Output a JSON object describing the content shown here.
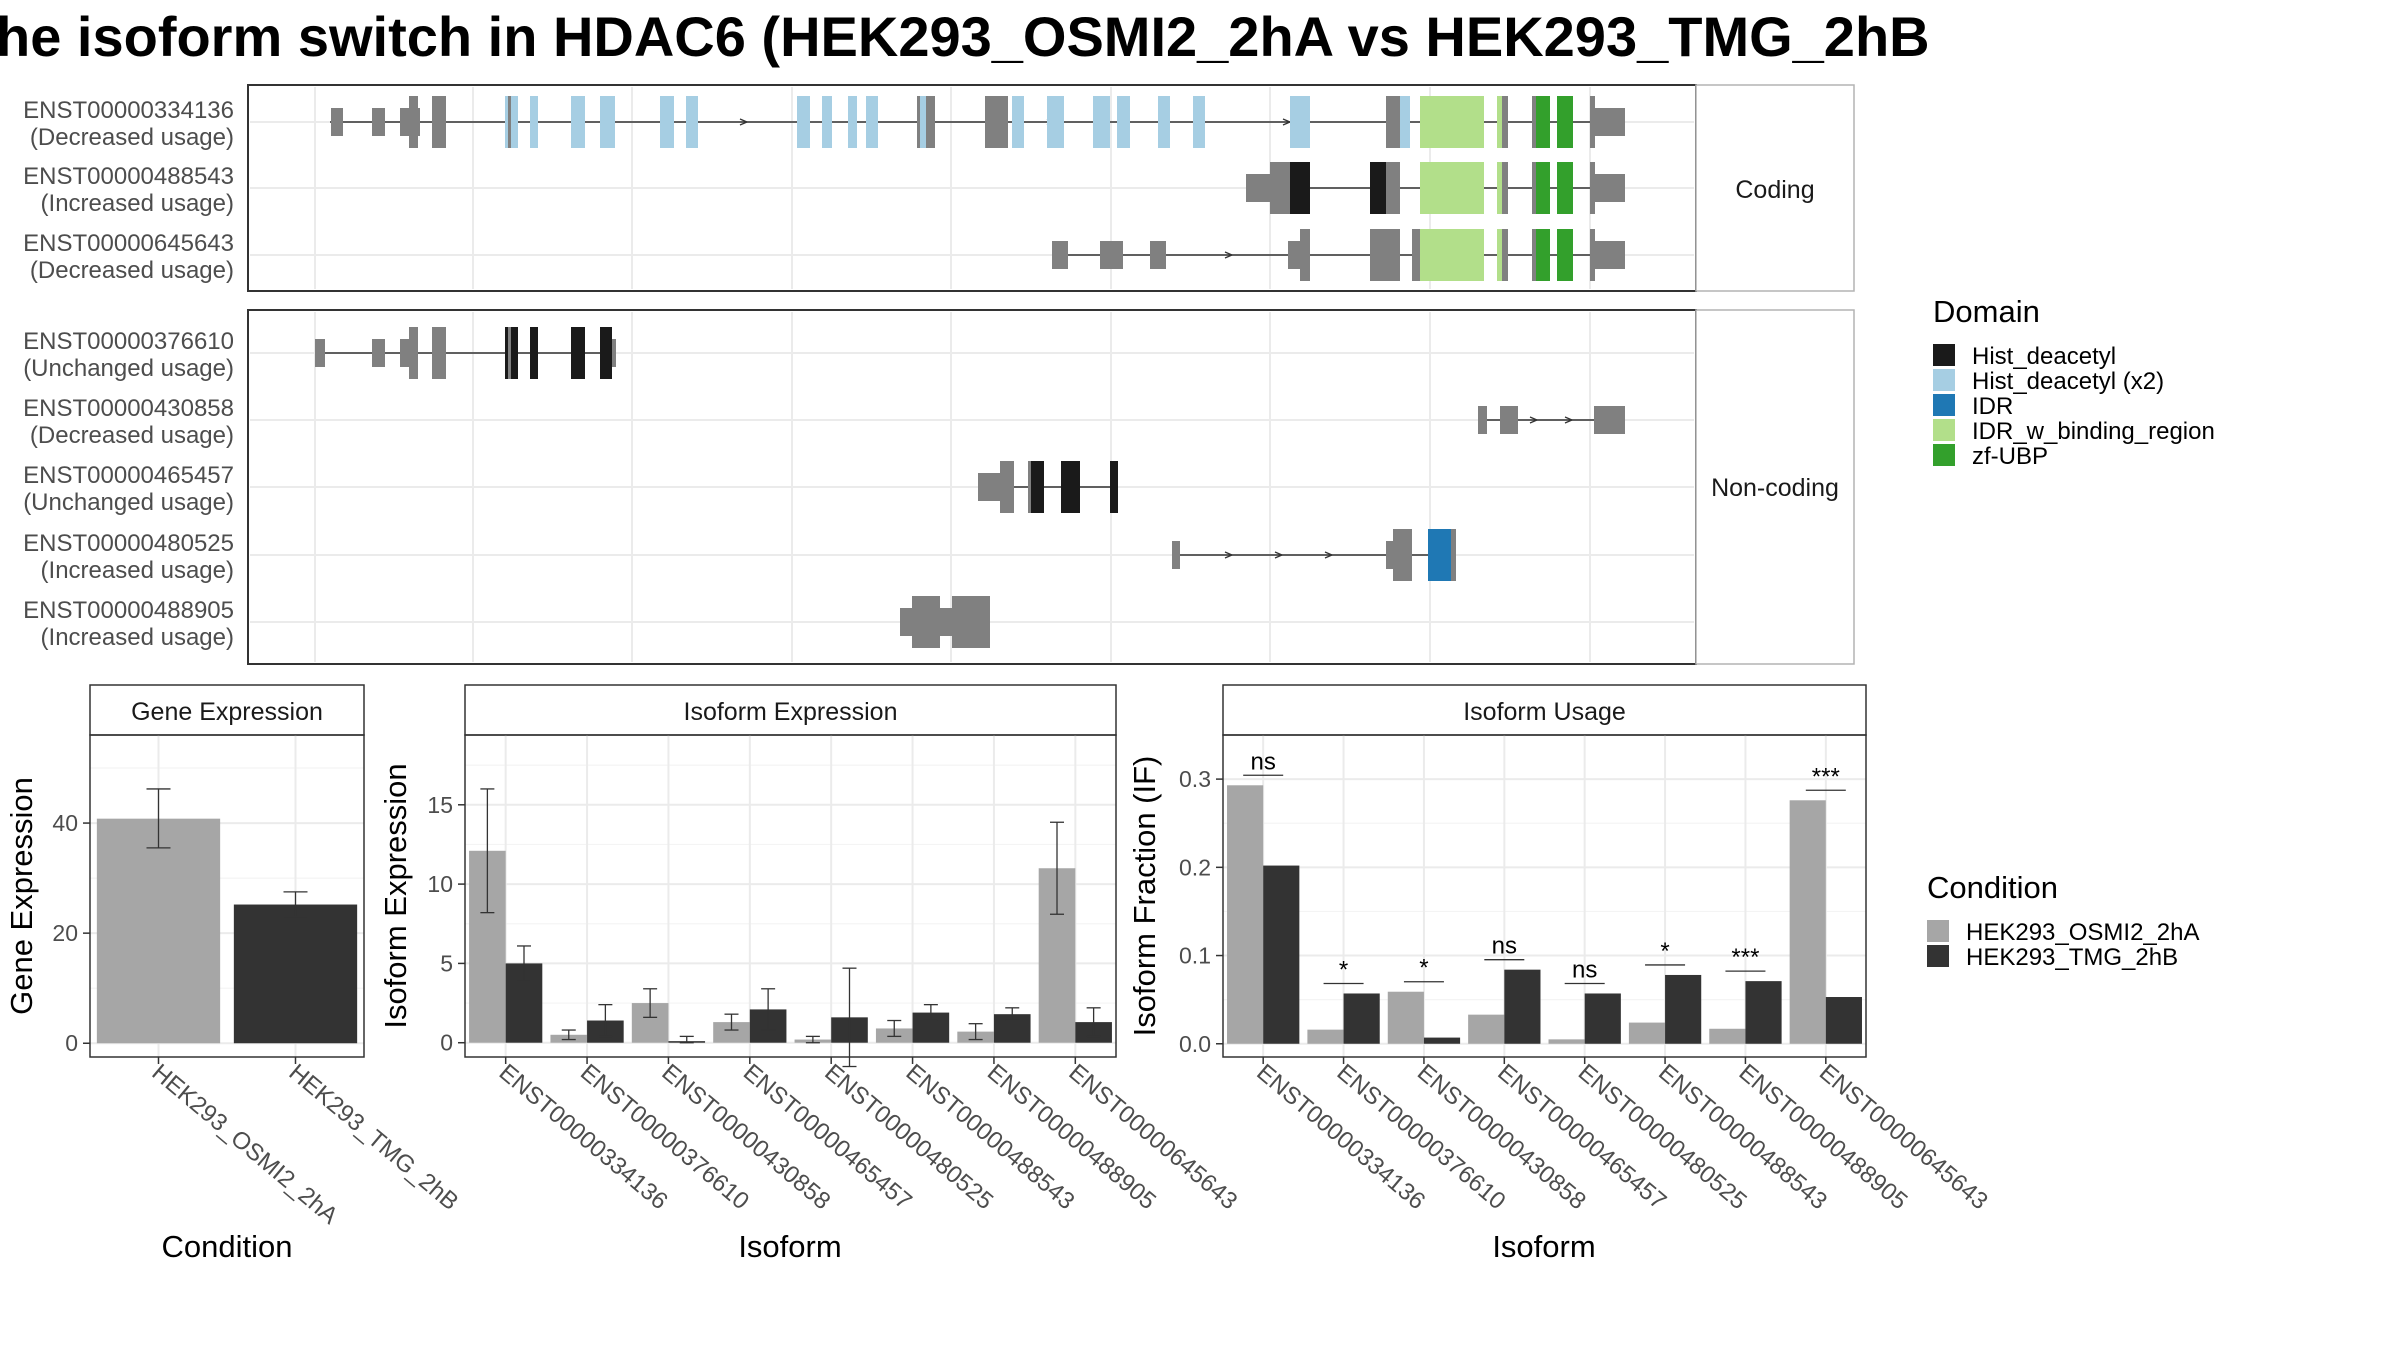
{
  "title": "he isoform switch in HDAC6 (HEK293_OSMI2_2hA vs HEK293_TMG_2hB",
  "structure": {
    "facet_coding": "Coding",
    "facet_noncoding": "Non-coding",
    "coding": [
      {
        "id": "ENST00000334136",
        "usage": "(Decreased usage)"
      },
      {
        "id": "ENST00000488543",
        "usage": "(Increased usage)"
      },
      {
        "id": "ENST00000645643",
        "usage": "(Decreased usage)"
      }
    ],
    "noncoding": [
      {
        "id": "ENST00000376610",
        "usage": "(Unchanged usage)"
      },
      {
        "id": "ENST00000430858",
        "usage": "(Decreased usage)"
      },
      {
        "id": "ENST00000465457",
        "usage": "(Unchanged usage)"
      },
      {
        "id": "ENST00000480525",
        "usage": "(Increased usage)"
      },
      {
        "id": "ENST00000488905",
        "usage": "(Increased usage)"
      }
    ]
  },
  "domain_legend": {
    "title": "Domain",
    "items": [
      {
        "label": "Hist_deacetyl",
        "color": "#1a1a1a"
      },
      {
        "label": "Hist_deacetyl (x2)",
        "color": "#a6cee3"
      },
      {
        "label": "IDR",
        "color": "#1f78b4"
      },
      {
        "label": "IDR_w_binding_region",
        "color": "#b2df8a"
      },
      {
        "label": "zf-UBP",
        "color": "#33a02c"
      }
    ]
  },
  "condition_legend": {
    "title": "Condition",
    "items": [
      {
        "label": "HEK293_OSMI2_2hA",
        "color": "#a6a6a6"
      },
      {
        "label": "HEK293_TMG_2hB",
        "color": "#333333"
      }
    ]
  },
  "chart_data": [
    {
      "type": "bar",
      "title": "Gene Expression",
      "xlabel": "Condition",
      "ylabel": "Gene Expression",
      "categories": [
        "HEK293_OSMI2_2hA",
        "HEK293_TMG_2hB"
      ],
      "values": [
        40.8,
        25.2
      ],
      "errors": [
        [
          35.5,
          46.2
        ],
        [
          23.0,
          27.5
        ]
      ],
      "ylim": [
        -2.5,
        56
      ],
      "yticks": [
        0,
        20,
        40
      ],
      "grid": true
    },
    {
      "type": "bar",
      "title": "Isoform Expression",
      "xlabel": "Isoform",
      "ylabel": "Isoform Expression",
      "categories": [
        "ENST00000334136",
        "ENST00000376610",
        "ENST00000430858",
        "ENST00000465457",
        "ENST00000480525",
        "ENST00000488543",
        "ENST00000488905",
        "ENST00000645643"
      ],
      "series": [
        {
          "name": "HEK293_OSMI2_2hA",
          "values": [
            12.1,
            0.5,
            2.5,
            1.3,
            0.2,
            0.9,
            0.7,
            11.0
          ],
          "errors": [
            [
              8.2,
              16.0
            ],
            [
              0.2,
              0.8
            ],
            [
              1.6,
              3.4
            ],
            [
              0.8,
              1.8
            ],
            [
              0.0,
              0.4
            ],
            [
              0.4,
              1.4
            ],
            [
              0.2,
              1.2
            ],
            [
              8.1,
              13.9
            ]
          ]
        },
        {
          "name": "HEK293_TMG_2hB",
          "values": [
            5.0,
            1.4,
            0.1,
            2.1,
            1.6,
            1.9,
            1.8,
            1.3
          ],
          "errors": [
            [
              3.9,
              6.1
            ],
            [
              0.4,
              2.4
            ],
            [
              0.0,
              0.4
            ],
            [
              0.8,
              3.4
            ],
            [
              -1.5,
              4.7
            ],
            [
              1.4,
              2.4
            ],
            [
              1.4,
              2.2
            ],
            [
              0.4,
              2.2
            ]
          ]
        }
      ],
      "ylim": [
        -0.9,
        19.4
      ],
      "yticks": [
        0,
        5,
        10,
        15
      ],
      "grid": true
    },
    {
      "type": "bar",
      "title": "Isoform Usage",
      "xlabel": "Isoform",
      "ylabel": "Isoform Fraction (IF)",
      "categories": [
        "ENST00000334136",
        "ENST00000376610",
        "ENST00000430858",
        "ENST00000465457",
        "ENST00000480525",
        "ENST00000488543",
        "ENST00000488905",
        "ENST00000645643"
      ],
      "series": [
        {
          "name": "HEK293_OSMI2_2hA",
          "values": [
            0.293,
            0.016,
            0.059,
            0.033,
            0.005,
            0.024,
            0.017,
            0.276
          ]
        },
        {
          "name": "HEK293_TMG_2hB",
          "values": [
            0.202,
            0.057,
            0.007,
            0.084,
            0.057,
            0.078,
            0.071,
            0.053
          ]
        }
      ],
      "significance": [
        "ns",
        "*",
        "*",
        "ns",
        "ns",
        "*",
        "***",
        "***"
      ],
      "ylim": [
        -0.015,
        0.35
      ],
      "yticks": [
        0.0,
        0.1,
        0.2,
        0.3
      ],
      "grid": true
    }
  ]
}
